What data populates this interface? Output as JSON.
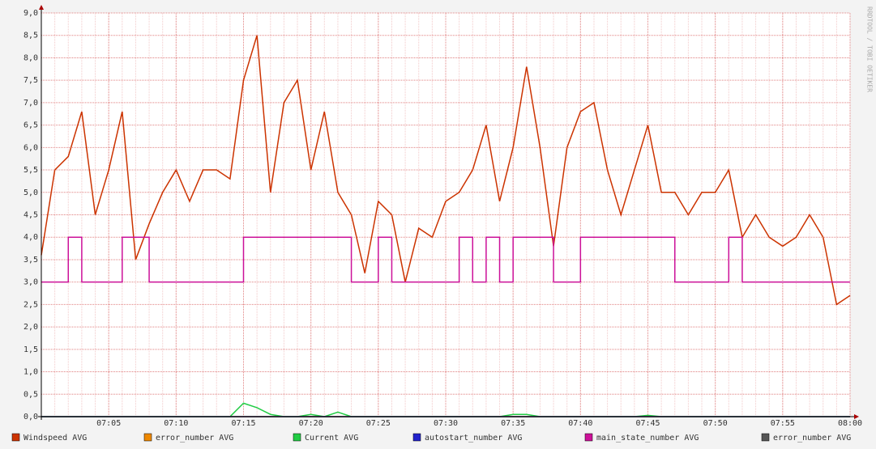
{
  "chart_data": {
    "type": "line",
    "watermark": "RRDTOOL / TOBI OETIKER",
    "x": [
      "07:00",
      "07:01",
      "07:02",
      "07:03",
      "07:04",
      "07:05",
      "07:06",
      "07:07",
      "07:08",
      "07:09",
      "07:10",
      "07:11",
      "07:12",
      "07:13",
      "07:14",
      "07:15",
      "07:16",
      "07:17",
      "07:18",
      "07:19",
      "07:20",
      "07:21",
      "07:22",
      "07:23",
      "07:24",
      "07:25",
      "07:26",
      "07:27",
      "07:28",
      "07:29",
      "07:30",
      "07:31",
      "07:32",
      "07:33",
      "07:34",
      "07:35",
      "07:36",
      "07:37",
      "07:38",
      "07:39",
      "07:40",
      "07:41",
      "07:42",
      "07:43",
      "07:44",
      "07:45",
      "07:46",
      "07:47",
      "07:48",
      "07:49",
      "07:50",
      "07:51",
      "07:52",
      "07:53",
      "07:54",
      "07:55",
      "07:56",
      "07:57",
      "07:58",
      "07:59",
      "08:00"
    ],
    "series": [
      {
        "name": "Windspeed AVG",
        "color": "#cc3300",
        "values": [
          3.6,
          5.5,
          5.8,
          6.8,
          4.5,
          5.5,
          6.8,
          3.5,
          4.3,
          5.0,
          5.5,
          4.8,
          5.5,
          5.5,
          5.3,
          7.5,
          8.5,
          5.0,
          7.0,
          7.5,
          5.5,
          6.8,
          5.0,
          4.5,
          3.2,
          4.8,
          4.5,
          3.0,
          4.2,
          4.0,
          4.8,
          5.0,
          5.5,
          6.5,
          4.8,
          6.0,
          7.8,
          6.0,
          3.8,
          6.0,
          6.8,
          7.0,
          5.5,
          4.5,
          5.5,
          6.5,
          5.0,
          5.0,
          4.5,
          5.0,
          5.0,
          5.5,
          4.0,
          4.5,
          4.0,
          3.8,
          4.0,
          4.5,
          4.0,
          2.5,
          2.7
        ]
      },
      {
        "name": "error_number AVG",
        "color": "#ee8800",
        "values": [
          0,
          0,
          0,
          0,
          0,
          0,
          0,
          0,
          0,
          0,
          0,
          0,
          0,
          0,
          0,
          0,
          0,
          0,
          0,
          0,
          0,
          0,
          0,
          0,
          0,
          0,
          0,
          0,
          0,
          0,
          0,
          0,
          0,
          0,
          0,
          0,
          0,
          0,
          0,
          0,
          0,
          0,
          0,
          0,
          0,
          0,
          0,
          0,
          0,
          0,
          0,
          0,
          0,
          0,
          0,
          0,
          0,
          0,
          0,
          0,
          0
        ]
      },
      {
        "name": "Current AVG",
        "color": "#22cc44",
        "values": [
          0,
          0,
          0,
          0,
          0,
          0,
          0,
          0,
          0,
          0,
          0,
          0,
          0,
          0,
          0,
          0.3,
          0.2,
          0.05,
          0,
          0,
          0.05,
          0,
          0.1,
          0,
          0,
          0,
          0,
          0,
          0,
          0,
          0,
          0,
          0,
          0,
          0,
          0.05,
          0.05,
          0,
          0,
          0,
          0,
          0,
          0,
          0,
          0,
          0.03,
          0,
          0,
          0,
          0,
          0,
          0,
          0,
          0,
          0,
          0,
          0,
          0,
          0,
          0,
          0
        ]
      },
      {
        "name": "autostart_number AVG",
        "color": "#2222cc",
        "values": [
          0,
          0,
          0,
          0,
          0,
          0,
          0,
          0,
          0,
          0,
          0,
          0,
          0,
          0,
          0,
          0,
          0,
          0,
          0,
          0,
          0,
          0,
          0,
          0,
          0,
          0,
          0,
          0,
          0,
          0,
          0,
          0,
          0,
          0,
          0,
          0,
          0,
          0,
          0,
          0,
          0,
          0,
          0,
          0,
          0,
          0,
          0,
          0,
          0,
          0,
          0,
          0,
          0,
          0,
          0,
          0,
          0,
          0,
          0,
          0,
          0
        ]
      },
      {
        "name": "main_state_number AVG",
        "color": "#cc1199",
        "values": [
          3,
          3,
          4,
          3,
          3,
          3,
          4,
          4,
          3,
          3,
          3,
          3,
          3,
          3,
          3,
          4,
          4,
          4,
          4,
          4,
          4,
          4,
          4,
          3,
          3,
          4,
          3,
          3,
          3,
          3,
          3,
          4,
          3,
          4,
          3,
          4,
          4,
          4,
          3,
          3,
          4,
          4,
          4,
          4,
          4,
          4,
          4,
          3,
          3,
          3,
          3,
          4,
          3,
          3,
          3,
          3,
          3,
          3,
          3,
          3,
          3
        ]
      },
      {
        "name": "error_number AVG",
        "color": "#555555",
        "values": [
          0,
          0,
          0,
          0,
          0,
          0,
          0,
          0,
          0,
          0,
          0,
          0,
          0,
          0,
          0,
          0,
          0,
          0,
          0,
          0,
          0,
          0,
          0,
          0,
          0,
          0,
          0,
          0,
          0,
          0,
          0,
          0,
          0,
          0,
          0,
          0,
          0,
          0,
          0,
          0,
          0,
          0,
          0,
          0,
          0,
          0,
          0,
          0,
          0,
          0,
          0,
          0,
          0,
          0,
          0,
          0,
          0,
          0,
          0,
          0,
          0
        ]
      }
    ],
    "xlim": [
      "07:00",
      "08:00"
    ],
    "xticks": [
      "07:05",
      "07:10",
      "07:15",
      "07:20",
      "07:25",
      "07:30",
      "07:35",
      "07:40",
      "07:45",
      "07:50",
      "07:55",
      "08:00"
    ],
    "ylim": [
      0,
      9
    ],
    "yticks": [
      {
        "value": 0,
        "label": "0,0"
      },
      {
        "value": 0.5,
        "label": "0,5"
      },
      {
        "value": 1,
        "label": "1,0"
      },
      {
        "value": 1.5,
        "label": "1,5"
      },
      {
        "value": 2,
        "label": "2,0"
      },
      {
        "value": 2.5,
        "label": "2,5"
      },
      {
        "value": 3,
        "label": "3,0"
      },
      {
        "value": 3.5,
        "label": "3,5"
      },
      {
        "value": 4,
        "label": "4,0"
      },
      {
        "value": 4.5,
        "label": "4,5"
      },
      {
        "value": 5,
        "label": "5,0"
      },
      {
        "value": 5.5,
        "label": "5,5"
      },
      {
        "value": 6,
        "label": "6,0"
      },
      {
        "value": 6.5,
        "label": "6,5"
      },
      {
        "value": 7,
        "label": "7,0"
      },
      {
        "value": 7.5,
        "label": "7,5"
      },
      {
        "value": 8,
        "label": "8,0"
      },
      {
        "value": 8.5,
        "label": "8,5"
      },
      {
        "value": 9,
        "label": "9,0"
      }
    ],
    "grid": true
  }
}
